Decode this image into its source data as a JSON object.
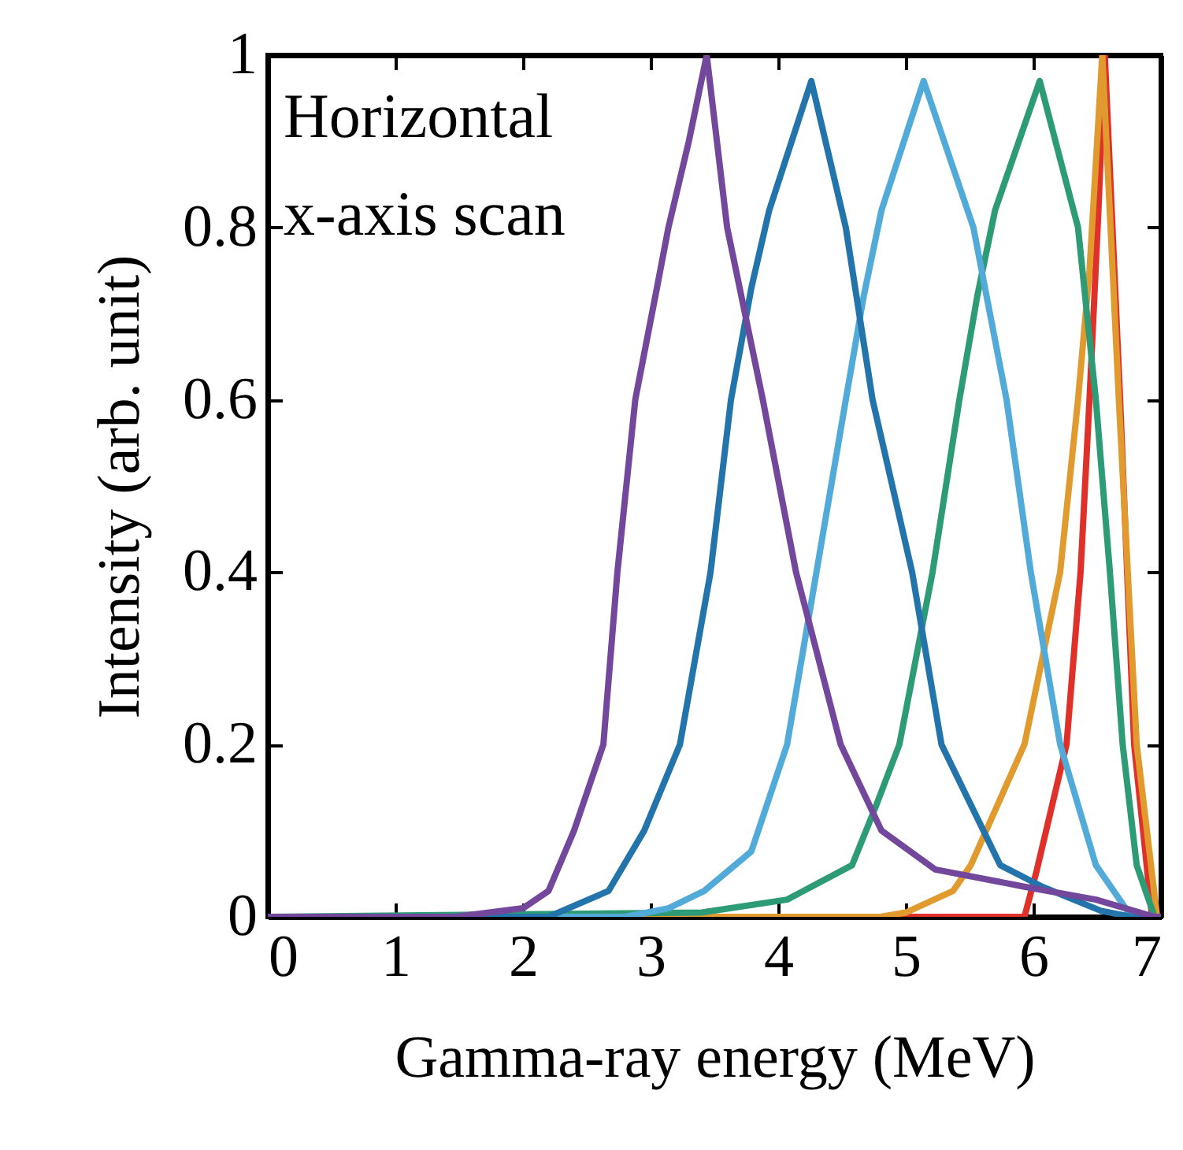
{
  "chart_data": {
    "type": "line",
    "xlabel": "Gamma-ray energy (MeV)",
    "ylabel": "Intensity (arb. unit)",
    "annotations": [
      "Horizontal",
      "x-axis scan"
    ],
    "xlim": [
      0,
      7
    ],
    "ylim": [
      0,
      1
    ],
    "xticks": [
      0,
      1,
      2,
      3,
      4,
      5,
      6,
      7
    ],
    "yticks": [
      0,
      0.2,
      0.4,
      0.6,
      0.8,
      1
    ],
    "grid": false,
    "legend": false,
    "marker": "none",
    "line_style": "solid",
    "series": [
      {
        "color": "#e0302a",
        "x": [
          0,
          5.93,
          6.02,
          6.26,
          6.37,
          6.44,
          6.51,
          6.56,
          6.62,
          6.68,
          6.79,
          6.93,
          7
        ],
        "values": [
          0,
          0,
          0.05,
          0.2,
          0.4,
          0.6,
          0.82,
          1.0,
          0.8,
          0.6,
          0.2,
          0,
          0
        ]
      },
      {
        "color": "#e09a2e",
        "x": [
          0,
          4.8,
          5.0,
          5.37,
          5.51,
          5.93,
          6.21,
          6.35,
          6.44,
          6.54,
          6.67,
          6.74,
          6.81,
          6.97,
          7
        ],
        "values": [
          0,
          0,
          0.005,
          0.03,
          0.06,
          0.2,
          0.4,
          0.6,
          0.75,
          1.0,
          0.6,
          0.4,
          0.2,
          0,
          0
        ]
      },
      {
        "color": "#2e9b77",
        "x": [
          0,
          3.4,
          4.07,
          4.58,
          4.77,
          4.95,
          5.21,
          5.42,
          5.56,
          5.7,
          6.05,
          6.35,
          6.49,
          6.6,
          6.7,
          6.81,
          6.95,
          7
        ],
        "values": [
          0,
          0.005,
          0.02,
          0.06,
          0.13,
          0.2,
          0.4,
          0.6,
          0.72,
          0.82,
          0.97,
          0.8,
          0.6,
          0.4,
          0.2,
          0.06,
          0,
          0
        ]
      },
      {
        "color": "#52aad8",
        "x": [
          0,
          2.8,
          3.14,
          3.42,
          3.79,
          4.07,
          4.3,
          4.53,
          4.67,
          4.81,
          5.14,
          5.53,
          5.79,
          5.98,
          6.21,
          6.49,
          6.77,
          7
        ],
        "values": [
          0,
          0,
          0.01,
          0.03,
          0.076,
          0.2,
          0.4,
          0.6,
          0.72,
          0.82,
          0.97,
          0.8,
          0.6,
          0.4,
          0.2,
          0.06,
          0,
          0
        ]
      },
      {
        "color": "#2274aa",
        "x": [
          0,
          2.2,
          2.67,
          2.95,
          3.23,
          3.47,
          3.63,
          3.79,
          3.93,
          4.26,
          4.53,
          4.74,
          5.05,
          5.28,
          5.74,
          6.07,
          6.53,
          6.77,
          7
        ],
        "values": [
          0,
          0,
          0.03,
          0.1,
          0.2,
          0.4,
          0.6,
          0.73,
          0.82,
          0.97,
          0.8,
          0.6,
          0.4,
          0.2,
          0.06,
          0.035,
          0.007,
          0,
          0
        ]
      },
      {
        "color": "#72479c",
        "x": [
          0,
          1.47,
          2.0,
          2.2,
          2.4,
          2.63,
          2.74,
          2.88,
          3.05,
          3.14,
          3.3,
          3.44,
          3.6,
          3.88,
          4.14,
          4.49,
          4.81,
          5.23,
          5.93,
          6.49,
          6.95,
          7
        ],
        "values": [
          0,
          0,
          0.01,
          0.03,
          0.1,
          0.2,
          0.4,
          0.6,
          0.73,
          0.8,
          0.9,
          1.0,
          0.8,
          0.6,
          0.4,
          0.2,
          0.1,
          0.055,
          0.035,
          0.02,
          0,
          0
        ]
      }
    ]
  }
}
